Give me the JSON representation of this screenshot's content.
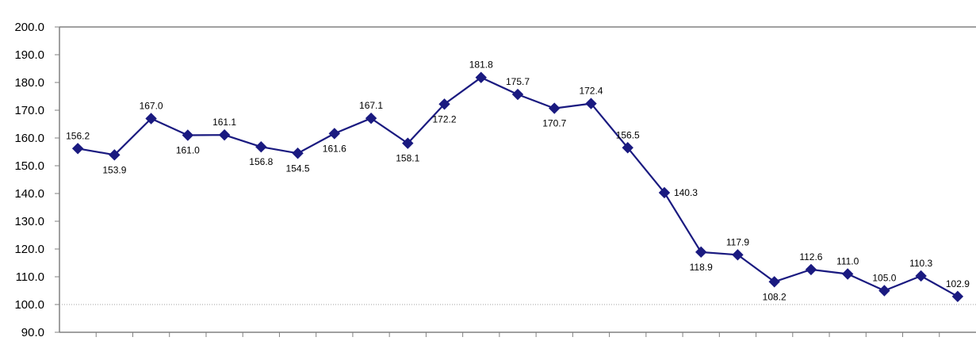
{
  "chart_data": {
    "type": "line",
    "title": "",
    "xlabel": "",
    "ylabel": "",
    "ylim": [
      90,
      200
    ],
    "y_ticks": [
      "90.0",
      "100.0",
      "110.0",
      "120.0",
      "130.0",
      "140.0",
      "150.0",
      "160.0",
      "170.0",
      "180.0",
      "190.0",
      "200.0"
    ],
    "reference_line": 100,
    "grid": false,
    "legend": "none",
    "series": [
      {
        "values": [
          156.2,
          153.9,
          167.0,
          161.0,
          161.1,
          156.8,
          154.5,
          161.6,
          167.1,
          158.1,
          172.2,
          181.8,
          175.7,
          170.7,
          172.4,
          156.5,
          140.3,
          118.9,
          117.9,
          108.2,
          112.6,
          111.0,
          105.0,
          110.3,
          102.9
        ],
        "labels": [
          "156.2",
          "153.9",
          "167.0",
          "161.0",
          "161.1",
          "156.8",
          "154.5",
          "161.6",
          "167.1",
          "158.1",
          "172.2",
          "181.8",
          "175.7",
          "170.7",
          "172.4",
          "156.5",
          "140.3",
          "118.9",
          "117.9",
          "108.2",
          "112.6",
          "111.0",
          "105.0",
          "110.3",
          "102.9"
        ],
        "label_positions": [
          "above",
          "below",
          "above",
          "below",
          "above",
          "below",
          "below",
          "below",
          "above",
          "below",
          "below",
          "above",
          "above",
          "below",
          "above",
          "above",
          "right",
          "below",
          "above",
          "below",
          "above",
          "above",
          "above",
          "above",
          "above"
        ],
        "color": "#1a1a80"
      }
    ]
  }
}
